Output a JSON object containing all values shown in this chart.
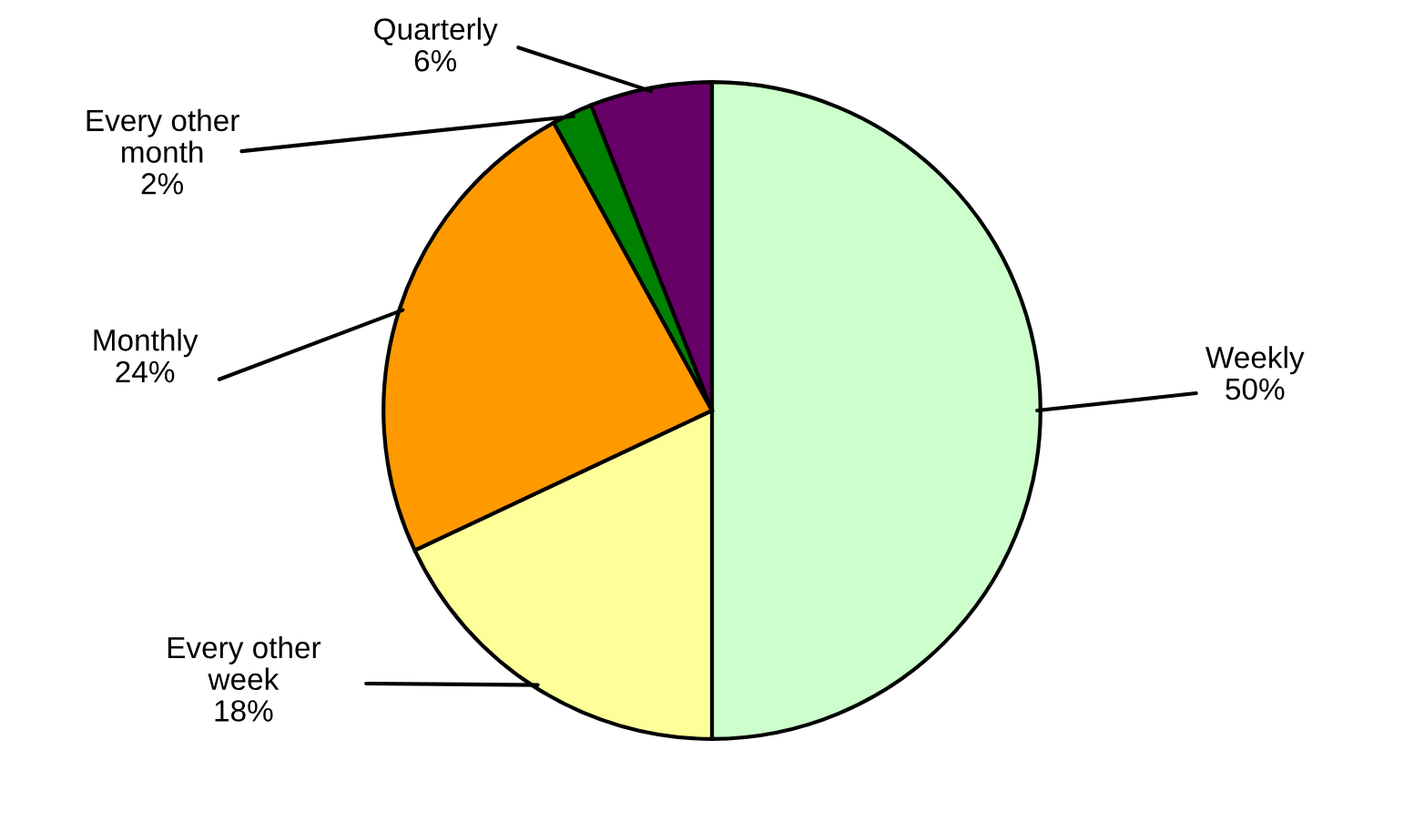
{
  "chart_data": {
    "type": "pie",
    "categories": [
      "Weekly",
      "Every other\nweek",
      "Monthly",
      "Every other\nmonth",
      "Quarterly"
    ],
    "values": [
      50,
      18,
      24,
      2,
      6
    ],
    "value_labels": [
      "50%",
      "18%",
      "24%",
      "2%",
      "6%"
    ],
    "colors": [
      "#ccffcc",
      "#ffff99",
      "#ff9900",
      "#008000",
      "#660066"
    ]
  }
}
